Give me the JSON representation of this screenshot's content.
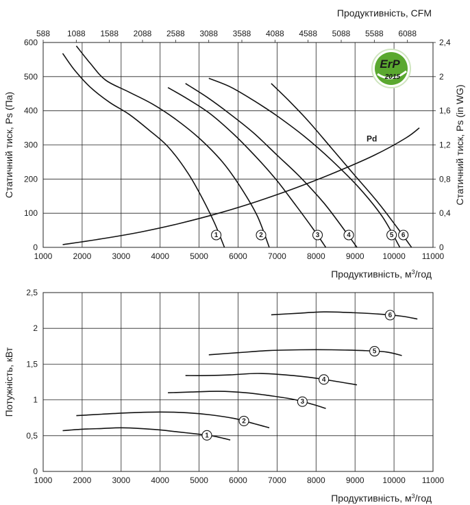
{
  "colors": {
    "curve": "#111111",
    "grid": "#222222",
    "erp_green": "#5aa82f",
    "erp_text": "#ffffff"
  },
  "erp_badge": {
    "line1": "ErP",
    "line2": "2015"
  },
  "chart_data": [
    {
      "type": "line",
      "title": "",
      "xlabel": "Продуктивність, м³/год",
      "x2label": "Продуктивність, CFM",
      "ylabel": "Статичний тиск, Ps (Па)",
      "y2label": "Статичний тиск, Ps (in WG)",
      "xlim": [
        1000,
        11000
      ],
      "ylim": [
        0,
        600
      ],
      "x2lim": [
        588,
        6474
      ],
      "y2lim": [
        0,
        2.4
      ],
      "grid": true,
      "xticks": [
        "1000",
        "2000",
        "3000",
        "4000",
        "5000",
        "6000",
        "7000",
        "8000",
        "9000",
        "10000",
        "11000"
      ],
      "yticks": [
        "0",
        "100",
        "200",
        "300",
        "400",
        "500",
        "600"
      ],
      "x2ticks": [
        "588",
        "1088",
        "1588",
        "2088",
        "2588",
        "3088",
        "3588",
        "4088",
        "4588",
        "5088",
        "5588",
        "6088"
      ],
      "y2ticks": [
        "0",
        "0,4",
        "0,8",
        "1,2",
        "1,6",
        "2",
        "2,4"
      ],
      "series": [
        {
          "name": "1",
          "points": [
            [
              1500,
              568
            ],
            [
              1800,
              520
            ],
            [
              2200,
              470
            ],
            [
              2700,
              425
            ],
            [
              3200,
              390
            ],
            [
              3700,
              345
            ],
            [
              4200,
              295
            ],
            [
              4700,
              220
            ],
            [
              5100,
              140
            ],
            [
              5400,
              70
            ],
            [
              5650,
              0
            ]
          ]
        },
        {
          "name": "2",
          "points": [
            [
              1850,
              590
            ],
            [
              2200,
              540
            ],
            [
              2600,
              490
            ],
            [
              3200,
              455
            ],
            [
              3800,
              420
            ],
            [
              4400,
              375
            ],
            [
              5000,
              320
            ],
            [
              5600,
              250
            ],
            [
              6100,
              170
            ],
            [
              6500,
              90
            ],
            [
              6800,
              0
            ]
          ]
        },
        {
          "name": "3",
          "points": [
            [
              4200,
              468
            ],
            [
              4700,
              435
            ],
            [
              5300,
              390
            ],
            [
              5900,
              330
            ],
            [
              6500,
              260
            ],
            [
              7000,
              195
            ],
            [
              7500,
              120
            ],
            [
              7950,
              50
            ],
            [
              8250,
              0
            ]
          ]
        },
        {
          "name": "4",
          "points": [
            [
              4650,
              480
            ],
            [
              5200,
              440
            ],
            [
              5800,
              390
            ],
            [
              6400,
              335
            ],
            [
              7000,
              270
            ],
            [
              7600,
              205
            ],
            [
              8200,
              130
            ],
            [
              8700,
              55
            ],
            [
              9050,
              0
            ]
          ]
        },
        {
          "name": "5",
          "points": [
            [
              5250,
              495
            ],
            [
              5800,
              470
            ],
            [
              6400,
              430
            ],
            [
              7000,
              385
            ],
            [
              7700,
              325
            ],
            [
              8400,
              255
            ],
            [
              9100,
              175
            ],
            [
              9700,
              90
            ],
            [
              10150,
              0
            ]
          ]
        },
        {
          "name": "6",
          "points": [
            [
              6850,
              480
            ],
            [
              7300,
              430
            ],
            [
              7800,
              370
            ],
            [
              8400,
              290
            ],
            [
              9000,
              210
            ],
            [
              9600,
              130
            ],
            [
              10100,
              55
            ],
            [
              10450,
              0
            ]
          ]
        },
        {
          "name": "Pd",
          "points": [
            [
              1500,
              8
            ],
            [
              2500,
              25
            ],
            [
              3500,
              45
            ],
            [
              4500,
              70
            ],
            [
              5500,
              100
            ],
            [
              6500,
              135
            ],
            [
              7500,
              175
            ],
            [
              8500,
              220
            ],
            [
              9500,
              270
            ],
            [
              10300,
              320
            ],
            [
              10650,
              350
            ]
          ]
        }
      ]
    },
    {
      "type": "line",
      "title": "",
      "xlabel": "Продуктивність, м³/год",
      "ylabel": "Потужність, кВт",
      "xlim": [
        1000,
        11000
      ],
      "ylim": [
        0,
        2.5
      ],
      "grid": true,
      "xticks": [
        "1000",
        "2000",
        "3000",
        "4000",
        "5000",
        "6000",
        "7000",
        "8000",
        "9000",
        "10000",
        "11000"
      ],
      "yticks": [
        "0",
        "0,5",
        "1",
        "1,5",
        "2",
        "2,5"
      ],
      "series": [
        {
          "name": "1",
          "points": [
            [
              1500,
              0.57
            ],
            [
              2000,
              0.59
            ],
            [
              2500,
              0.6
            ],
            [
              3000,
              0.61
            ],
            [
              3500,
              0.6
            ],
            [
              4000,
              0.58
            ],
            [
              4500,
              0.55
            ],
            [
              5000,
              0.52
            ],
            [
              5400,
              0.49
            ],
            [
              5800,
              0.44
            ]
          ]
        },
        {
          "name": "2",
          "points": [
            [
              1850,
              0.78
            ],
            [
              2500,
              0.8
            ],
            [
              3200,
              0.82
            ],
            [
              4000,
              0.83
            ],
            [
              4700,
              0.82
            ],
            [
              5300,
              0.79
            ],
            [
              5900,
              0.74
            ],
            [
              6400,
              0.67
            ],
            [
              6800,
              0.61
            ]
          ]
        },
        {
          "name": "3",
          "points": [
            [
              4200,
              1.1
            ],
            [
              4800,
              1.11
            ],
            [
              5500,
              1.12
            ],
            [
              6200,
              1.1
            ],
            [
              6800,
              1.06
            ],
            [
              7400,
              1.01
            ],
            [
              7900,
              0.94
            ],
            [
              8250,
              0.88
            ]
          ]
        },
        {
          "name": "4",
          "points": [
            [
              4650,
              1.34
            ],
            [
              5200,
              1.34
            ],
            [
              5800,
              1.35
            ],
            [
              6500,
              1.37
            ],
            [
              7200,
              1.35
            ],
            [
              7900,
              1.31
            ],
            [
              8500,
              1.26
            ],
            [
              9050,
              1.21
            ]
          ]
        },
        {
          "name": "5",
          "points": [
            [
              5250,
              1.63
            ],
            [
              6000,
              1.66
            ],
            [
              6800,
              1.69
            ],
            [
              7600,
              1.7
            ],
            [
              8400,
              1.7
            ],
            [
              9200,
              1.69
            ],
            [
              9800,
              1.67
            ],
            [
              10200,
              1.62
            ]
          ]
        },
        {
          "name": "6",
          "points": [
            [
              6850,
              2.19
            ],
            [
              7500,
              2.21
            ],
            [
              8200,
              2.23
            ],
            [
              8900,
              2.22
            ],
            [
              9600,
              2.2
            ],
            [
              10200,
              2.17
            ],
            [
              10600,
              2.13
            ]
          ]
        }
      ]
    }
  ]
}
